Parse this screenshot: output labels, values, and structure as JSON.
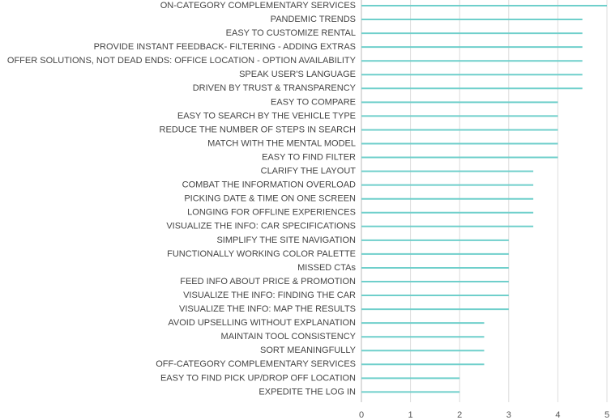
{
  "chart_data": {
    "type": "bar",
    "orientation": "horizontal",
    "categories": [
      "ON-CATEGORY COMPLEMENTARY SERVICES",
      "PANDEMIC TRENDS",
      "EASY TO CUSTOMIZE RENTAL",
      "PROVIDE INSTANT FEEDBACK- FILTERING - ADDING EXTRAS",
      "OFFER SOLUTIONS, NOT DEAD ENDS: OFFICE LOCATION - OPTION AVAILABILITY",
      "SPEAK USER'S LANGUAGE",
      "DRIVEN BY TRUST & TRANSPARENCY",
      "EASY TO COMPARE",
      "EASY TO SEARCH BY THE VEHICLE TYPE",
      "REDUCE THE NUMBER OF STEPS IN SEARCH",
      "MATCH WITH THE MENTAL MODEL",
      "EASY TO FIND FILTER",
      "CLARIFY THE LAYOUT",
      "COMBAT THE INFORMATION OVERLOAD",
      "PICKING DATE & TIME ON ONE SCREEN",
      "LONGING FOR OFFLINE EXPERIENCES",
      "VISUALIZE THE INFO: CAR SPECIFICATIONS",
      "SIMPLIFY THE SITE NAVIGATION",
      "FUNCTIONALLY WORKING COLOR PALETTE",
      "MISSED CTAs",
      "FEED INFO ABOUT PRICE & PROMOTION",
      "VISUALIZE THE INFO: FINDING THE CAR",
      "VISUALIZE THE INFO: MAP THE RESULTS",
      "AVOID UPSELLING  WITHOUT EXPLANATION",
      "MAINTAIN TOOL CONSISTENCY",
      "SORT MEANINGFULLY",
      "OFF-CATEGORY COMPLEMENTARY SERVICES",
      "EASY TO FIND PICK UP/DROP OFF LOCATION",
      "EXPEDITE THE LOG IN"
    ],
    "values": [
      5,
      4.5,
      4.5,
      4.5,
      4.5,
      4.5,
      4.5,
      4,
      4,
      4,
      4,
      4,
      3.5,
      3.5,
      3.5,
      3.5,
      3.5,
      3,
      3,
      3,
      3,
      3,
      3,
      2.5,
      2.5,
      2.5,
      2.5,
      2,
      2
    ],
    "xlim": [
      0,
      5
    ],
    "xticks": [
      0,
      1,
      2,
      3,
      4,
      5
    ],
    "title": "",
    "xlabel": "",
    "ylabel": "",
    "grid": true,
    "legend": "none",
    "colors": {
      "bar": "#6fcfcb",
      "grid": "#dcdcdc",
      "axis": "#bbbbbb"
    }
  }
}
